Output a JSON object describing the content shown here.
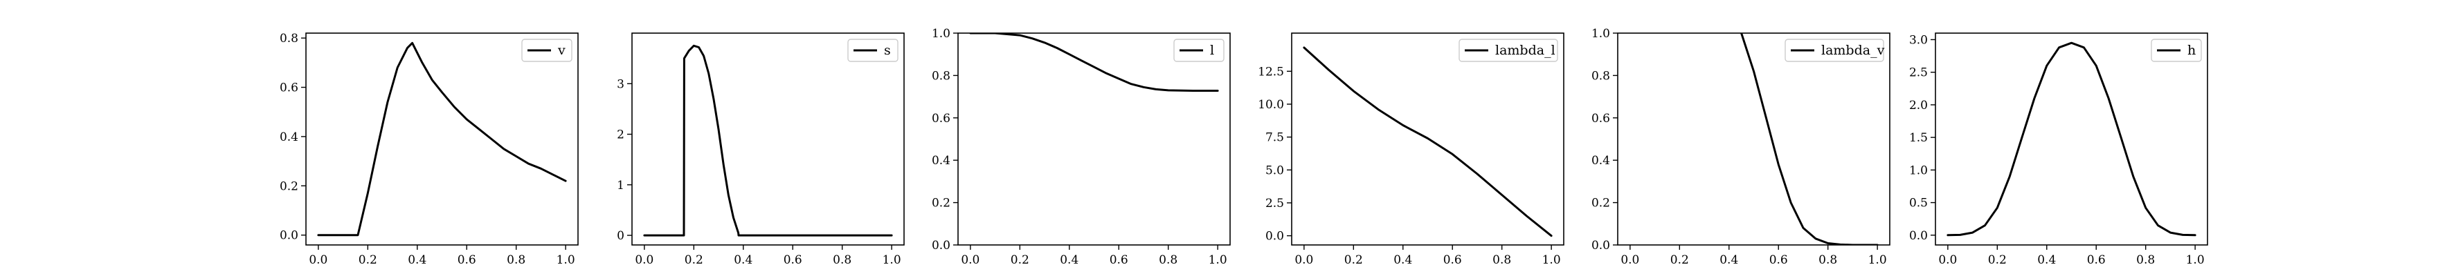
{
  "chart_data": [
    {
      "type": "line",
      "legend_placement": "top-right",
      "grid": false,
      "xlim": [
        -0.05,
        1.05
      ],
      "ylim": [
        -0.04,
        0.82
      ],
      "x_ticks": [
        "0.0",
        "0.2",
        "0.4",
        "0.6",
        "0.8",
        "1.0"
      ],
      "y_ticks": [
        "0.0",
        "0.2",
        "0.4",
        "0.6",
        "0.8"
      ],
      "series": [
        {
          "name": "v",
          "x": [
            0.0,
            0.16,
            0.2,
            0.24,
            0.28,
            0.32,
            0.36,
            0.38,
            0.42,
            0.46,
            0.5,
            0.55,
            0.6,
            0.65,
            0.7,
            0.75,
            0.8,
            0.85,
            0.9,
            0.95,
            1.0
          ],
          "y": [
            0.0,
            0.0,
            0.17,
            0.36,
            0.54,
            0.68,
            0.76,
            0.78,
            0.7,
            0.63,
            0.58,
            0.52,
            0.47,
            0.43,
            0.39,
            0.35,
            0.32,
            0.29,
            0.27,
            0.245,
            0.22
          ]
        }
      ]
    },
    {
      "type": "line",
      "legend_placement": "top-right",
      "grid": false,
      "xlim": [
        -0.05,
        1.05
      ],
      "ylim": [
        -0.19,
        4.0
      ],
      "x_ticks": [
        "0.0",
        "0.2",
        "0.4",
        "0.6",
        "0.8",
        "1.0"
      ],
      "y_ticks": [
        "0",
        "1",
        "2",
        "3"
      ],
      "series": [
        {
          "name": "s",
          "x": [
            0.0,
            0.16,
            0.161,
            0.18,
            0.2,
            0.22,
            0.24,
            0.26,
            0.28,
            0.3,
            0.32,
            0.34,
            0.36,
            0.38,
            0.381,
            0.6,
            0.8,
            1.0
          ],
          "y": [
            0.0,
            0.0,
            3.5,
            3.65,
            3.75,
            3.72,
            3.55,
            3.2,
            2.7,
            2.1,
            1.4,
            0.8,
            0.35,
            0.05,
            0.0,
            0.0,
            0.0,
            0.0
          ]
        }
      ]
    },
    {
      "type": "line",
      "legend_placement": "top-right",
      "grid": false,
      "xlim": [
        -0.05,
        1.05
      ],
      "ylim": [
        0.0,
        1.0
      ],
      "x_ticks": [
        "0.0",
        "0.2",
        "0.4",
        "0.6",
        "0.8",
        "1.0"
      ],
      "y_ticks": [
        "0.0",
        "0.2",
        "0.4",
        "0.6",
        "0.8",
        "1.0"
      ],
      "series": [
        {
          "name": "l",
          "x": [
            0.0,
            0.1,
            0.2,
            0.25,
            0.3,
            0.35,
            0.4,
            0.45,
            0.5,
            0.55,
            0.6,
            0.65,
            0.7,
            0.75,
            0.8,
            0.9,
            1.0
          ],
          "y": [
            1.0,
            1.0,
            0.99,
            0.975,
            0.955,
            0.93,
            0.9,
            0.87,
            0.84,
            0.81,
            0.785,
            0.76,
            0.745,
            0.735,
            0.73,
            0.728,
            0.728
          ]
        }
      ]
    },
    {
      "type": "line",
      "legend_placement": "top-right",
      "grid": false,
      "xlim": [
        -0.05,
        1.05
      ],
      "ylim": [
        -0.7,
        15.4
      ],
      "x_ticks": [
        "0.0",
        "0.2",
        "0.4",
        "0.6",
        "0.8",
        "1.0"
      ],
      "y_ticks": [
        "0.0",
        "2.5",
        "5.0",
        "7.5",
        "10.0",
        "12.5"
      ],
      "series": [
        {
          "name": "lambda_l",
          "x": [
            0.0,
            0.1,
            0.2,
            0.3,
            0.4,
            0.5,
            0.6,
            0.7,
            0.8,
            0.9,
            1.0
          ],
          "y": [
            14.3,
            12.6,
            11.0,
            9.6,
            8.4,
            7.4,
            6.2,
            4.7,
            3.1,
            1.5,
            0.0
          ]
        }
      ]
    },
    {
      "type": "line",
      "legend_placement": "top-right",
      "grid": false,
      "xlim": [
        -0.05,
        1.05
      ],
      "ylim": [
        0.0,
        1.0
      ],
      "x_ticks": [
        "0.0",
        "0.2",
        "0.4",
        "0.6",
        "0.8",
        "1.0"
      ],
      "y_ticks": [
        "0.0",
        "0.2",
        "0.4",
        "0.6",
        "0.8",
        "1.0"
      ],
      "series": [
        {
          "name": "lambda_v",
          "x": [
            0.45,
            0.5,
            0.55,
            0.6,
            0.65,
            0.7,
            0.75,
            0.8,
            0.85,
            0.9,
            0.95,
            1.0
          ],
          "y": [
            1.0,
            0.82,
            0.6,
            0.38,
            0.2,
            0.08,
            0.03,
            0.008,
            0.002,
            0.0,
            0.0,
            0.0
          ]
        }
      ]
    },
    {
      "type": "line",
      "legend_placement": "top-right",
      "grid": false,
      "xlim": [
        -0.05,
        1.05
      ],
      "ylim": [
        -0.15,
        3.1
      ],
      "x_ticks": [
        "0.0",
        "0.2",
        "0.4",
        "0.6",
        "0.8",
        "1.0"
      ],
      "y_ticks": [
        "0.0",
        "0.5",
        "1.0",
        "1.5",
        "2.0",
        "2.5",
        "3.0"
      ],
      "series": [
        {
          "name": "h",
          "x": [
            0.0,
            0.05,
            0.1,
            0.15,
            0.2,
            0.25,
            0.3,
            0.35,
            0.4,
            0.45,
            0.5,
            0.55,
            0.6,
            0.65,
            0.7,
            0.75,
            0.8,
            0.85,
            0.9,
            0.95,
            1.0
          ],
          "y": [
            0.0,
            0.005,
            0.04,
            0.15,
            0.42,
            0.9,
            1.5,
            2.1,
            2.6,
            2.88,
            2.95,
            2.88,
            2.6,
            2.1,
            1.5,
            0.9,
            0.42,
            0.15,
            0.04,
            0.005,
            0.0
          ]
        }
      ]
    }
  ]
}
